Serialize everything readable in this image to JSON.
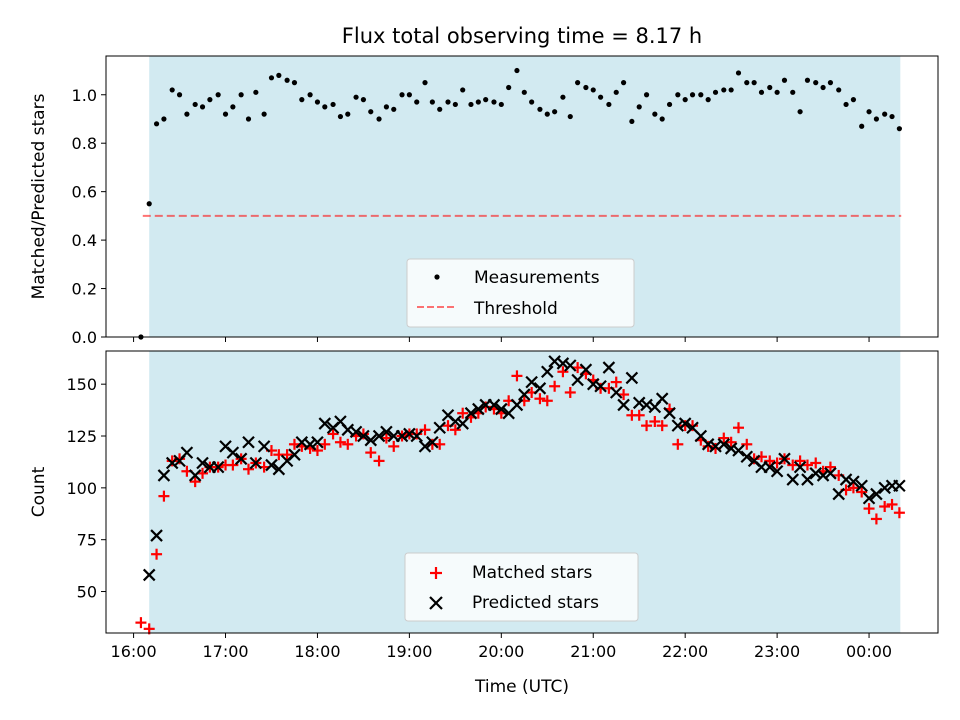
{
  "figure": {
    "title": "Flux total observing time = 8.17 h"
  },
  "chart_data": [
    {
      "type": "scatter",
      "ylabel": "Matched/Predicted stars",
      "xlabel": "",
      "xlim": [
        15.7,
        24.75
      ],
      "ylim": [
        0,
        1.16
      ],
      "yticks": [
        "0.0",
        "0.2",
        "0.4",
        "0.6",
        "0.8",
        "1.0"
      ],
      "observing_window": {
        "start": 16.17,
        "end": 24.34,
        "color": "#add8e6"
      },
      "legend_position": "bottom-center",
      "threshold": {
        "name": "Threshold",
        "value": 0.5,
        "x_range": [
          16.1,
          24.35
        ],
        "color": "#ff0000"
      },
      "series": [
        {
          "name": "Measurements",
          "marker": "dot",
          "color": "#000000",
          "x": [
            16.08,
            16.17,
            16.25,
            16.33,
            16.42,
            16.5,
            16.58,
            16.67,
            16.75,
            16.83,
            16.92,
            17.0,
            17.08,
            17.17,
            17.25,
            17.33,
            17.42,
            17.5,
            17.58,
            17.67,
            17.75,
            17.83,
            17.92,
            18.0,
            18.08,
            18.17,
            18.25,
            18.33,
            18.42,
            18.5,
            18.58,
            18.67,
            18.75,
            18.83,
            18.92,
            19.0,
            19.08,
            19.17,
            19.25,
            19.33,
            19.42,
            19.5,
            19.58,
            19.67,
            19.75,
            19.83,
            19.92,
            20.0,
            20.08,
            20.17,
            20.25,
            20.33,
            20.42,
            20.5,
            20.58,
            20.67,
            20.75,
            20.83,
            20.92,
            21.0,
            21.08,
            21.17,
            21.25,
            21.33,
            21.42,
            21.5,
            21.58,
            21.67,
            21.75,
            21.83,
            21.92,
            22.0,
            22.08,
            22.17,
            22.25,
            22.33,
            22.42,
            22.5,
            22.58,
            22.67,
            22.75,
            22.83,
            22.92,
            23.0,
            23.08,
            23.17,
            23.25,
            23.33,
            23.42,
            23.5,
            23.58,
            23.67,
            23.75,
            23.83,
            23.92,
            24.0,
            24.08,
            24.17,
            24.25,
            24.33
          ],
          "y": [
            0.0,
            0.55,
            0.88,
            0.9,
            1.02,
            1.0,
            0.92,
            0.96,
            0.95,
            0.98,
            1.0,
            0.92,
            0.95,
            1.0,
            0.9,
            1.01,
            0.92,
            1.07,
            1.08,
            1.06,
            1.05,
            0.98,
            1.0,
            0.97,
            0.95,
            0.96,
            0.91,
            0.92,
            0.99,
            0.98,
            0.93,
            0.9,
            0.95,
            0.94,
            1.0,
            1.0,
            0.97,
            1.05,
            0.97,
            0.94,
            0.97,
            0.96,
            1.02,
            0.96,
            0.97,
            0.98,
            0.97,
            0.96,
            1.03,
            1.1,
            1.01,
            0.97,
            0.94,
            0.92,
            0.93,
            0.99,
            0.91,
            1.05,
            1.03,
            1.02,
            0.99,
            0.96,
            1.01,
            1.05,
            0.89,
            0.95,
            1.0,
            0.92,
            0.9,
            0.96,
            1.0,
            0.98,
            1.0,
            1.0,
            0.98,
            1.01,
            1.02,
            1.02,
            1.09,
            1.05,
            1.05,
            1.01,
            1.03,
            1.01,
            1.06,
            1.01,
            0.93,
            1.06,
            1.05,
            1.03,
            1.05,
            1.02,
            0.96,
            0.98,
            0.87,
            0.93,
            0.9,
            0.92,
            0.91,
            0.86
          ]
        }
      ]
    },
    {
      "type": "scatter",
      "ylabel": "Count",
      "xlabel": "Time (UTC)",
      "xlim": [
        15.7,
        24.75
      ],
      "ylim": [
        30,
        166
      ],
      "yticks": [
        "50",
        "75",
        "100",
        "125",
        "150"
      ],
      "xticks": [
        "16:00",
        "17:00",
        "18:00",
        "19:00",
        "20:00",
        "21:00",
        "22:00",
        "23:00",
        "00:00"
      ],
      "observing_window": {
        "start": 16.17,
        "end": 24.34,
        "color": "#add8e6"
      },
      "legend_position": "bottom-center",
      "series": [
        {
          "name": "Matched stars",
          "marker": "plus",
          "color": "#ff0000",
          "x": [
            16.08,
            16.17,
            16.25,
            16.33,
            16.42,
            16.5,
            16.58,
            16.67,
            16.75,
            16.83,
            16.92,
            17.0,
            17.08,
            17.17,
            17.25,
            17.33,
            17.42,
            17.5,
            17.58,
            17.67,
            17.75,
            17.83,
            17.92,
            18.0,
            18.08,
            18.17,
            18.25,
            18.33,
            18.42,
            18.5,
            18.58,
            18.67,
            18.75,
            18.83,
            18.92,
            19.0,
            19.08,
            19.17,
            19.25,
            19.33,
            19.42,
            19.5,
            19.58,
            19.67,
            19.75,
            19.83,
            19.92,
            20.0,
            20.08,
            20.17,
            20.25,
            20.33,
            20.42,
            20.5,
            20.58,
            20.67,
            20.75,
            20.83,
            20.92,
            21.0,
            21.08,
            21.17,
            21.25,
            21.33,
            21.42,
            21.5,
            21.58,
            21.67,
            21.75,
            21.83,
            21.92,
            22.0,
            22.08,
            22.17,
            22.25,
            22.33,
            22.42,
            22.5,
            22.58,
            22.67,
            22.75,
            22.83,
            22.92,
            23.0,
            23.08,
            23.17,
            23.25,
            23.33,
            23.42,
            23.5,
            23.58,
            23.67,
            23.75,
            23.83,
            23.92,
            24.0,
            24.08,
            24.17,
            24.25,
            24.33
          ],
          "y": [
            35,
            32,
            68,
            96,
            113,
            114,
            108,
            103,
            107,
            110,
            110,
            111,
            111,
            114,
            109,
            112,
            110,
            118,
            116,
            116,
            121,
            120,
            119,
            118,
            121,
            126,
            122,
            121,
            125,
            126,
            117,
            113,
            124,
            120,
            125,
            126,
            126,
            128,
            121,
            121,
            130,
            128,
            136,
            134,
            136,
            139,
            138,
            136,
            142,
            154,
            142,
            146,
            143,
            142,
            149,
            156,
            146,
            158,
            155,
            152,
            148,
            148,
            151,
            145,
            135,
            135,
            130,
            132,
            130,
            138,
            121,
            130,
            130,
            123,
            120,
            119,
            124,
            122,
            129,
            121,
            114,
            115,
            113,
            112,
            114,
            111,
            113,
            111,
            112,
            108,
            110,
            106,
            99,
            100,
            98,
            90,
            85,
            91,
            92,
            88
          ]
        },
        {
          "name": "Predicted stars",
          "marker": "x",
          "color": "#000000",
          "x": [
            16.17,
            16.25,
            16.33,
            16.42,
            16.5,
            16.58,
            16.67,
            16.75,
            16.83,
            16.92,
            17.0,
            17.08,
            17.17,
            17.25,
            17.33,
            17.42,
            17.5,
            17.58,
            17.67,
            17.75,
            17.83,
            17.92,
            18.0,
            18.08,
            18.17,
            18.25,
            18.33,
            18.42,
            18.5,
            18.58,
            18.67,
            18.75,
            18.83,
            18.92,
            19.0,
            19.08,
            19.17,
            19.25,
            19.33,
            19.42,
            19.5,
            19.58,
            19.67,
            19.75,
            19.83,
            19.92,
            20.0,
            20.08,
            20.17,
            20.25,
            20.33,
            20.42,
            20.5,
            20.58,
            20.67,
            20.75,
            20.83,
            20.92,
            21.0,
            21.08,
            21.17,
            21.25,
            21.33,
            21.42,
            21.5,
            21.58,
            21.67,
            21.75,
            21.83,
            21.92,
            22.0,
            22.08,
            22.17,
            22.25,
            22.33,
            22.42,
            22.5,
            22.58,
            22.67,
            22.75,
            22.83,
            22.92,
            23.0,
            23.08,
            23.17,
            23.25,
            23.33,
            23.42,
            23.5,
            23.58,
            23.67,
            23.75,
            23.83,
            23.92,
            24.0,
            24.08,
            24.17,
            24.25,
            24.33
          ],
          "y": [
            58,
            77,
            106,
            112,
            113,
            117,
            106,
            112,
            110,
            110,
            120,
            117,
            114,
            122,
            112,
            120,
            111,
            109,
            113,
            116,
            122,
            121,
            122,
            131,
            129,
            132,
            128,
            127,
            125,
            123,
            125,
            127,
            125,
            125,
            126,
            125,
            120,
            122,
            129,
            135,
            132,
            131,
            136,
            138,
            140,
            140,
            138,
            136,
            140,
            145,
            151,
            148,
            156,
            161,
            160,
            159,
            152,
            157,
            150,
            149,
            158,
            146,
            140,
            153,
            141,
            140,
            139,
            143,
            136,
            130,
            131,
            129,
            125,
            121,
            120,
            121,
            119,
            118,
            115,
            113,
            110,
            110,
            108,
            114,
            104,
            110,
            104,
            107,
            106,
            107,
            97,
            104,
            103,
            101,
            95,
            97,
            100,
            101,
            101
          ]
        }
      ]
    }
  ]
}
